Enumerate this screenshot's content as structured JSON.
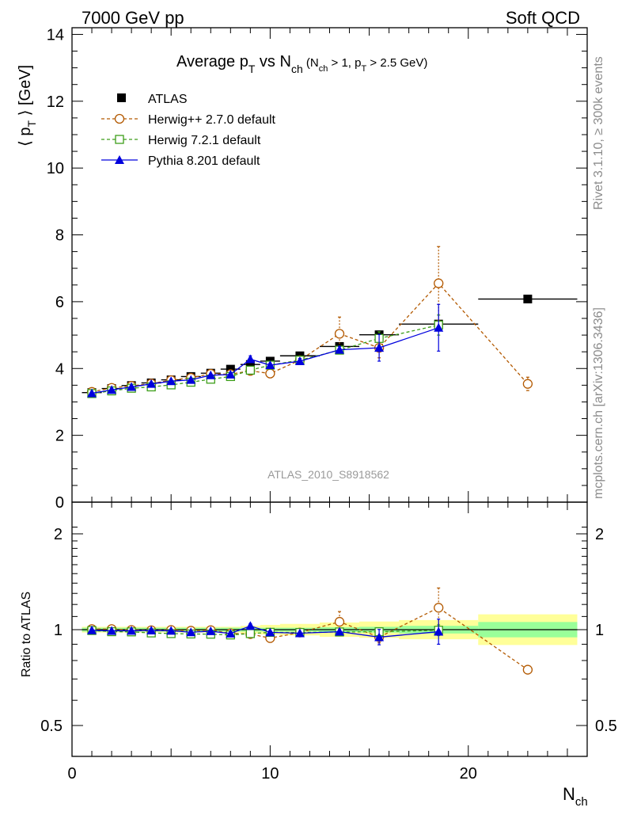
{
  "header": {
    "left": "7000 GeV pp",
    "right": "Soft QCD"
  },
  "side_labels": {
    "rivet": "Rivet 3.1.10, ≥ 300k events",
    "mcplots": "mcplots.cern.ch [arXiv:1306.3436]"
  },
  "plot_title": {
    "main_a": "Average p",
    "main_a_sub": "T",
    "main_b": " vs N",
    "main_b_sub": "ch",
    "cond_a": " (N",
    "cond_a_sub": "ch",
    "cond_b": " > 1, p",
    "cond_b_sub": "T",
    "cond_c": " > 2.5 GeV)"
  },
  "watermark": "ATLAS_2010_S8918562",
  "colors": {
    "atlas": "#000000",
    "herwigpp": "#b35900",
    "herwig7": "#3d9e1a",
    "pythia": "#0000dd",
    "band_inner": "#99ff99",
    "band_outer": "#ffff99"
  },
  "chart_data": [
    {
      "type": "scatter",
      "panel": "main",
      "ylabel": "⟨ p_T ⟩ [GeV]",
      "ylabel_parts": {
        "a": "⟨ p",
        "sub": "T",
        "b": " ⟩ [GeV]"
      },
      "xlim": [
        0,
        26
      ],
      "ylim": [
        0,
        14.2
      ],
      "y_ticks": [
        0,
        2,
        4,
        6,
        8,
        10,
        12,
        14
      ],
      "legend_position": "top-left",
      "series": [
        {
          "name": "ATLAS",
          "style": "data",
          "x": [
            1,
            2,
            3,
            4,
            5,
            6,
            7,
            8,
            9,
            10,
            11.5,
            13.5,
            15.5,
            18.5,
            23
          ],
          "y": [
            3.28,
            3.4,
            3.49,
            3.57,
            3.66,
            3.76,
            3.86,
            3.98,
            4.12,
            4.22,
            4.38,
            4.66,
            5.01,
            5.33,
            6.08
          ],
          "xerr": [
            0.5,
            0.5,
            0.5,
            0.5,
            0.5,
            0.5,
            0.5,
            0.5,
            0.5,
            0.5,
            1,
            1,
            1,
            2,
            2.5
          ]
        },
        {
          "name": "Herwig++ 2.7.0 default",
          "style": "dashed-circle",
          "x": [
            1,
            2,
            3,
            4,
            5,
            6,
            7,
            8,
            9,
            10,
            11.5,
            13.5,
            15.5,
            18.5,
            23
          ],
          "y": [
            3.3,
            3.42,
            3.48,
            3.55,
            3.65,
            3.72,
            3.84,
            3.83,
            3.93,
            3.85,
            4.25,
            5.04,
            4.62,
            6.55,
            3.54
          ],
          "yerr": [
            0.02,
            0.02,
            0.02,
            0.03,
            0.03,
            0.03,
            0.04,
            0.05,
            0.06,
            0.08,
            0.1,
            0.5,
            0.3,
            1.1,
            0.2
          ]
        },
        {
          "name": "Herwig 7.2.1 default",
          "style": "dashed-square",
          "x": [
            1,
            2,
            3,
            4,
            5,
            6,
            7,
            8,
            9,
            10,
            11.5,
            13.5,
            15.5,
            18.5
          ],
          "y": [
            3.25,
            3.33,
            3.41,
            3.45,
            3.51,
            3.59,
            3.68,
            3.76,
            3.95,
            4.1,
            4.25,
            4.55,
            4.9,
            5.3
          ],
          "yerr": [
            0.02,
            0.02,
            0.02,
            0.02,
            0.03,
            0.03,
            0.03,
            0.04,
            0.05,
            0.06,
            0.08,
            0.1,
            0.2,
            0.3
          ]
        },
        {
          "name": "Pythia 8.201 default",
          "style": "solid-triangle",
          "x": [
            1,
            2,
            3,
            4,
            5,
            6,
            7,
            8,
            9,
            10,
            11.5,
            13.5,
            15.5,
            18.5
          ],
          "y": [
            3.26,
            3.36,
            3.45,
            3.54,
            3.62,
            3.66,
            3.8,
            3.82,
            4.28,
            4.1,
            4.22,
            4.56,
            4.62,
            5.22
          ],
          "yerr": [
            0.02,
            0.02,
            0.02,
            0.02,
            0.03,
            0.03,
            0.03,
            0.04,
            0.1,
            0.06,
            0.08,
            0.1,
            0.4,
            0.7
          ]
        }
      ]
    },
    {
      "type": "scatter",
      "panel": "ratio",
      "ylabel": "Ratio to ATLAS",
      "xlabel_parts": {
        "a": "N",
        "sub": "ch"
      },
      "xlim": [
        0,
        26
      ],
      "ylim": [
        0.35,
        2.2
      ],
      "y_ticks": [
        0.5,
        1,
        2
      ],
      "x_ticks": [
        0,
        10,
        20
      ],
      "bands": {
        "x_edges": [
          0.5,
          1.5,
          2.5,
          3.5,
          4.5,
          5.5,
          6.5,
          7.5,
          8.5,
          9.5,
          10.5,
          12.5,
          14.5,
          16.5,
          20.5,
          25.5
        ],
        "inner": [
          0.02,
          0.02,
          0.02,
          0.02,
          0.02,
          0.02,
          0.02,
          0.02,
          0.02,
          0.02,
          0.02,
          0.025,
          0.03,
          0.04,
          0.08
        ],
        "outer": [
          0.03,
          0.03,
          0.03,
          0.03,
          0.03,
          0.03,
          0.03,
          0.03,
          0.04,
          0.05,
          0.06,
          0.075,
          0.085,
          0.1,
          0.16
        ]
      },
      "series": [
        {
          "name": "Herwig++ 2.7.0 default",
          "style": "dashed-circle",
          "x": [
            1,
            2,
            3,
            4,
            5,
            6,
            7,
            8,
            9,
            10,
            11.5,
            13.5,
            15.5,
            18.5,
            23
          ],
          "y": [
            1.006,
            1.006,
            0.997,
            0.994,
            0.997,
            0.989,
            0.995,
            0.962,
            0.954,
            0.912,
            0.97,
            1.082,
            0.922,
            1.229,
            0.582
          ],
          "yerr": [
            0.006,
            0.006,
            0.006,
            0.008,
            0.008,
            0.008,
            0.01,
            0.013,
            0.015,
            0.019,
            0.023,
            0.107,
            0.06,
            0.206,
            0.033
          ]
        },
        {
          "name": "Herwig 7.2.1 default",
          "style": "dashed-square",
          "x": [
            1,
            2,
            3,
            4,
            5,
            6,
            7,
            8,
            9,
            10,
            11.5,
            13.5,
            15.5,
            18.5
          ],
          "y": [
            0.991,
            0.979,
            0.977,
            0.966,
            0.959,
            0.955,
            0.953,
            0.945,
            0.959,
            0.972,
            0.97,
            0.976,
            0.978,
            0.994
          ],
          "yerr": [
            0.006,
            0.006,
            0.006,
            0.006,
            0.008,
            0.008,
            0.008,
            0.01,
            0.012,
            0.014,
            0.018,
            0.021,
            0.04,
            0.056
          ]
        },
        {
          "name": "Pythia 8.201 default",
          "style": "solid-triangle",
          "x": [
            1,
            2,
            3,
            4,
            5,
            6,
            7,
            8,
            9,
            10,
            11.5,
            13.5,
            15.5,
            18.5
          ],
          "y": [
            0.994,
            0.988,
            0.989,
            0.992,
            0.989,
            0.973,
            0.984,
            0.96,
            1.039,
            0.972,
            0.963,
            0.979,
            0.922,
            0.979
          ],
          "yerr": [
            0.006,
            0.006,
            0.006,
            0.006,
            0.008,
            0.008,
            0.008,
            0.01,
            0.024,
            0.014,
            0.018,
            0.021,
            0.08,
            0.131
          ]
        }
      ]
    }
  ]
}
